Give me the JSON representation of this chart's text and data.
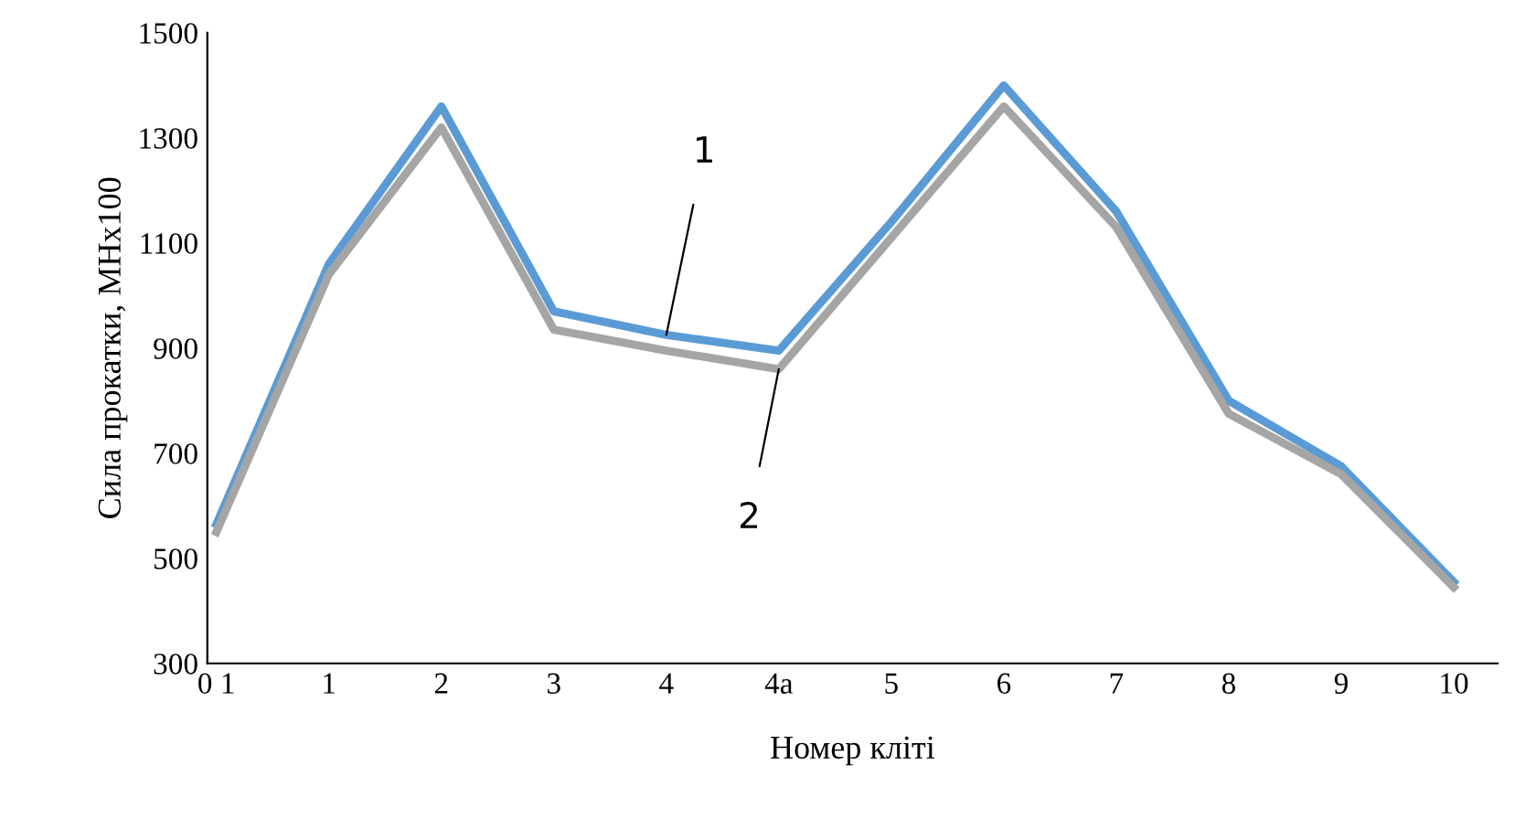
{
  "chart_data": {
    "type": "line",
    "xlabel": "Номер кліті",
    "ylabel": "Сила прокатки, МНх100",
    "categories": [
      "0 1",
      "1",
      "2",
      "3",
      "4",
      "4a",
      "5",
      "6",
      "7",
      "8",
      "9",
      "10"
    ],
    "series": [
      {
        "color": "#5b9bd5",
        "values": [
          565,
          1060,
          1360,
          970,
          925,
          895,
          1140,
          1400,
          1160,
          800,
          675,
          455
        ]
      },
      {
        "color": "#a5a5a5",
        "values": [
          550,
          1040,
          1320,
          935,
          895,
          860,
          1110,
          1360,
          1130,
          775,
          660,
          445
        ]
      }
    ],
    "ylim": [
      300,
      1500
    ],
    "yticks": [
      300,
      500,
      700,
      900,
      1100,
      1300,
      1500
    ],
    "grid": false,
    "marker": "none",
    "line_style": "solid",
    "annotations": [
      {
        "text": "1",
        "x": "4",
        "y": 925
      },
      {
        "text": "2",
        "x": "4a",
        "y": 860
      }
    ]
  }
}
